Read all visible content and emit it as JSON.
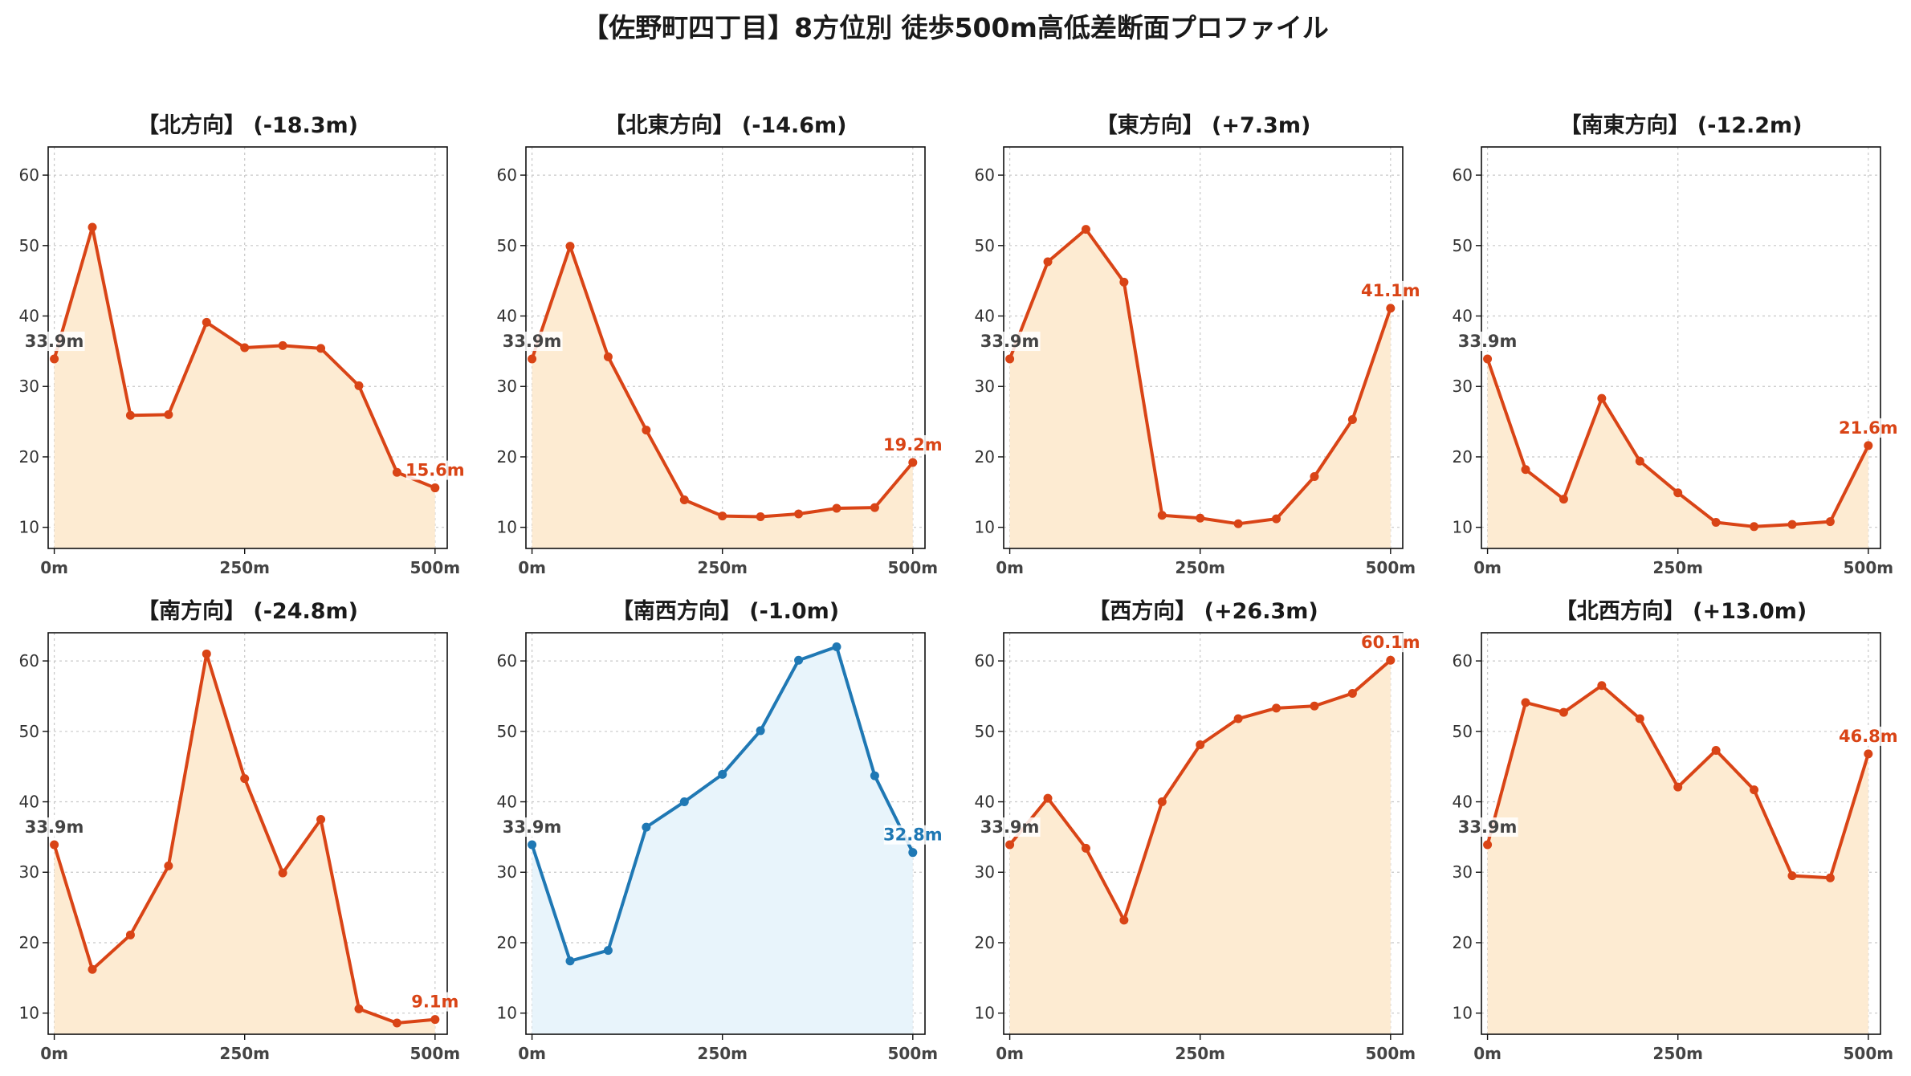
{
  "title": "【佐野町四丁目】8方位別 徒歩500m高低差断面プロファイル",
  "colors": {
    "uphill_line": "#d94416",
    "uphill_fill": "#fdebd2",
    "downhill_line": "#1f78b4",
    "downhill_fill": "#e8f4fb",
    "start_label": "#444444",
    "grid": "#c8c8c8"
  },
  "chart_data": [
    {
      "type": "area",
      "title": "【北方向】 (-18.3m)",
      "x": [
        0,
        50,
        100,
        150,
        200,
        250,
        300,
        350,
        400,
        450,
        500
      ],
      "y": [
        33.9,
        52.6,
        25.9,
        26.0,
        39.1,
        35.5,
        35.8,
        35.4,
        30.1,
        17.8,
        15.6
      ],
      "start_label": "33.9m",
      "end_label": "15.6m",
      "style": "orange",
      "xticks": [
        "0m",
        "250m",
        "500m"
      ],
      "yticks": [
        10,
        20,
        30,
        40,
        50,
        60
      ],
      "ylim": [
        7,
        64
      ],
      "xlim": [
        -8,
        516
      ],
      "grid": true
    },
    {
      "type": "area",
      "title": "【北東方向】 (-14.6m)",
      "x": [
        0,
        50,
        100,
        150,
        200,
        250,
        300,
        350,
        400,
        450,
        500
      ],
      "y": [
        33.9,
        49.9,
        34.2,
        23.8,
        13.9,
        11.6,
        11.5,
        11.9,
        12.7,
        12.8,
        19.2
      ],
      "start_label": "33.9m",
      "end_label": "19.2m",
      "style": "orange",
      "xticks": [
        "0m",
        "250m",
        "500m"
      ],
      "yticks": [
        10,
        20,
        30,
        40,
        50,
        60
      ],
      "ylim": [
        7,
        64
      ],
      "xlim": [
        -8,
        516
      ],
      "grid": true
    },
    {
      "type": "area",
      "title": "【東方向】 (+7.3m)",
      "x": [
        0,
        50,
        100,
        150,
        200,
        250,
        300,
        350,
        400,
        450,
        500
      ],
      "y": [
        33.9,
        47.7,
        52.3,
        44.8,
        11.7,
        11.3,
        10.5,
        11.2,
        17.2,
        25.3,
        41.1
      ],
      "start_label": "33.9m",
      "end_label": "41.1m",
      "style": "orange",
      "xticks": [
        "0m",
        "250m",
        "500m"
      ],
      "yticks": [
        10,
        20,
        30,
        40,
        50,
        60
      ],
      "ylim": [
        7,
        64
      ],
      "xlim": [
        -8,
        516
      ],
      "grid": true
    },
    {
      "type": "area",
      "title": "【南東方向】 (-12.2m)",
      "x": [
        0,
        50,
        100,
        150,
        200,
        250,
        300,
        350,
        400,
        450,
        500
      ],
      "y": [
        33.9,
        18.2,
        14.0,
        28.3,
        19.4,
        14.9,
        10.7,
        10.1,
        10.4,
        10.8,
        21.6
      ],
      "start_label": "33.9m",
      "end_label": "21.6m",
      "style": "orange",
      "xticks": [
        "0m",
        "250m",
        "500m"
      ],
      "yticks": [
        10,
        20,
        30,
        40,
        50,
        60
      ],
      "ylim": [
        7,
        64
      ],
      "xlim": [
        -8,
        516
      ],
      "grid": true
    },
    {
      "type": "area",
      "title": "【南方向】 (-24.8m)",
      "x": [
        0,
        50,
        100,
        150,
        200,
        250,
        300,
        350,
        400,
        450,
        500
      ],
      "y": [
        33.9,
        16.2,
        21.1,
        30.9,
        61.0,
        43.3,
        29.9,
        37.5,
        10.6,
        8.6,
        9.1
      ],
      "start_label": "33.9m",
      "end_label": "9.1m",
      "style": "orange",
      "xticks": [
        "0m",
        "250m",
        "500m"
      ],
      "yticks": [
        10,
        20,
        30,
        40,
        50,
        60
      ],
      "ylim": [
        7,
        64
      ],
      "xlim": [
        -8,
        516
      ],
      "grid": true
    },
    {
      "type": "area",
      "title": "【南西方向】 (-1.0m)",
      "x": [
        0,
        50,
        100,
        150,
        200,
        250,
        300,
        350,
        400,
        450,
        500
      ],
      "y": [
        33.9,
        17.4,
        18.9,
        36.4,
        40.0,
        43.9,
        50.1,
        60.1,
        62.0,
        43.7,
        32.8
      ],
      "start_label": "33.9m",
      "end_label": "32.8m",
      "style": "blue",
      "xticks": [
        "0m",
        "250m",
        "500m"
      ],
      "yticks": [
        10,
        20,
        30,
        40,
        50,
        60
      ],
      "ylim": [
        7,
        64
      ],
      "xlim": [
        -8,
        516
      ],
      "grid": true
    },
    {
      "type": "area",
      "title": "【西方向】 (+26.3m)",
      "x": [
        0,
        50,
        100,
        150,
        200,
        250,
        300,
        350,
        400,
        450,
        500
      ],
      "y": [
        33.9,
        40.5,
        33.4,
        23.2,
        40.0,
        48.1,
        51.8,
        53.3,
        53.6,
        55.4,
        60.1
      ],
      "start_label": "33.9m",
      "end_label": "60.1m",
      "style": "orange",
      "xticks": [
        "0m",
        "250m",
        "500m"
      ],
      "yticks": [
        10,
        20,
        30,
        40,
        50,
        60
      ],
      "ylim": [
        7,
        64
      ],
      "xlim": [
        -8,
        516
      ],
      "grid": true
    },
    {
      "type": "area",
      "title": "【北西方向】 (+13.0m)",
      "x": [
        0,
        50,
        100,
        150,
        200,
        250,
        300,
        350,
        400,
        450,
        500
      ],
      "y": [
        33.9,
        54.1,
        52.7,
        56.5,
        51.8,
        42.1,
        47.3,
        41.7,
        29.5,
        29.2,
        46.8
      ],
      "start_label": "33.9m",
      "end_label": "46.8m",
      "style": "orange",
      "xticks": [
        "0m",
        "250m",
        "500m"
      ],
      "yticks": [
        10,
        20,
        30,
        40,
        50,
        60
      ],
      "ylim": [
        7,
        64
      ],
      "xlim": [
        -8,
        516
      ],
      "grid": true
    }
  ]
}
